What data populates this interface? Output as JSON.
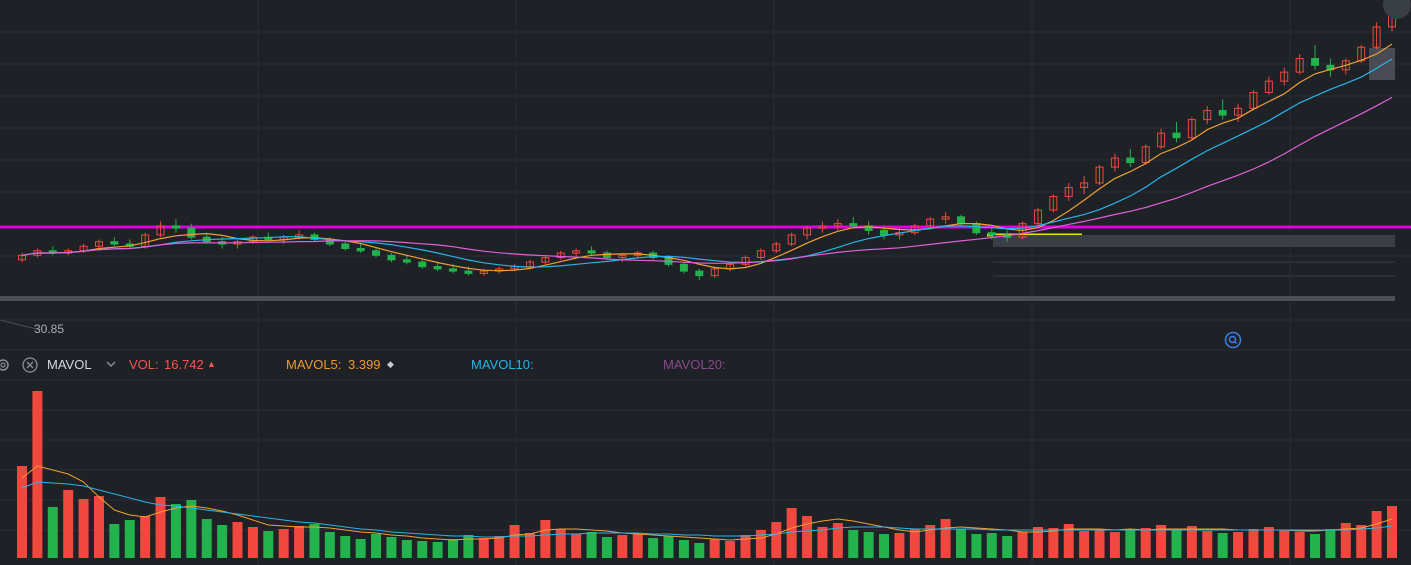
{
  "colors": {
    "background": "#1e2126",
    "grid": "#2a2e35",
    "up": "#f0483e",
    "down": "#22b34c",
    "ma5": "#f0a030",
    "ma10": "#28b4e8",
    "ma20": "#e060d8",
    "resistance": "#e000e0",
    "support": "#f0e010",
    "vol_label": "#f0584e",
    "mavol5_label": "#f09a2a",
    "mavol10_label": "#28b4e8",
    "mavol20_label": "#8a4a8c"
  },
  "icons": {
    "settings": "gear-icon",
    "close": "close-circle-icon",
    "dropdown": "chevron-down-icon",
    "zoom": "zoom-reset-icon"
  },
  "price_panel": {
    "low_price_label": "30.85"
  },
  "indicator_bar": {
    "name": "MAVOL",
    "vol_label": "VOL:",
    "vol_value": "16.742",
    "vol_marker": "▲",
    "mavol5_label": "MAVOL5:",
    "mavol5_value": "3.399",
    "mavol5_marker": "◆",
    "mavol10_label": "MAVOL10:",
    "mavol20_label": "MAVOL20:"
  },
  "chart_data": [
    {
      "type": "candlestick",
      "title": "",
      "overlays": [
        "MA5",
        "MA10",
        "MA20"
      ],
      "horizontal_lines": [
        "resistance (magenta)",
        "support (yellow)"
      ],
      "candles": [
        [
          33.1,
          33.4,
          33.0,
          33.3
        ],
        [
          33.3,
          33.6,
          33.2,
          33.5
        ],
        [
          33.5,
          33.7,
          33.3,
          33.4
        ],
        [
          33.4,
          33.6,
          33.3,
          33.5
        ],
        [
          33.5,
          33.8,
          33.4,
          33.7
        ],
        [
          33.7,
          34.0,
          33.5,
          33.9
        ],
        [
          33.9,
          34.1,
          33.7,
          33.8
        ],
        [
          33.8,
          34.0,
          33.6,
          33.7
        ],
        [
          33.7,
          34.3,
          33.6,
          34.2
        ],
        [
          34.2,
          34.8,
          34.1,
          34.6
        ],
        [
          34.6,
          34.9,
          34.3,
          34.5
        ],
        [
          34.5,
          34.7,
          34.0,
          34.1
        ],
        [
          34.1,
          34.3,
          33.8,
          33.9
        ],
        [
          33.9,
          34.1,
          33.6,
          33.8
        ],
        [
          33.8,
          34.0,
          33.6,
          33.9
        ],
        [
          33.9,
          34.2,
          33.8,
          34.1
        ],
        [
          34.1,
          34.3,
          33.9,
          34.0
        ],
        [
          34.0,
          34.2,
          33.8,
          34.1
        ],
        [
          34.1,
          34.4,
          34.0,
          34.2
        ],
        [
          34.2,
          34.3,
          33.9,
          34.0
        ],
        [
          34.0,
          34.1,
          33.7,
          33.8
        ],
        [
          33.8,
          33.9,
          33.5,
          33.6
        ],
        [
          33.6,
          33.8,
          33.4,
          33.5
        ],
        [
          33.5,
          33.6,
          33.2,
          33.3
        ],
        [
          33.3,
          33.4,
          33.0,
          33.1
        ],
        [
          33.1,
          33.3,
          32.9,
          33.0
        ],
        [
          33.0,
          33.1,
          32.7,
          32.8
        ],
        [
          32.8,
          33.0,
          32.6,
          32.7
        ],
        [
          32.7,
          32.9,
          32.5,
          32.6
        ],
        [
          32.6,
          32.8,
          32.4,
          32.5
        ],
        [
          32.5,
          32.7,
          32.4,
          32.6
        ],
        [
          32.6,
          32.8,
          32.5,
          32.7
        ],
        [
          32.7,
          32.9,
          32.6,
          32.8
        ],
        [
          32.8,
          33.1,
          32.7,
          33.0
        ],
        [
          33.0,
          33.3,
          32.9,
          33.2
        ],
        [
          33.2,
          33.5,
          33.1,
          33.4
        ],
        [
          33.4,
          33.6,
          33.2,
          33.5
        ],
        [
          33.5,
          33.7,
          33.3,
          33.4
        ],
        [
          33.4,
          33.5,
          33.1,
          33.2
        ],
        [
          33.2,
          33.4,
          33.0,
          33.3
        ],
        [
          33.3,
          33.5,
          33.2,
          33.4
        ],
        [
          33.4,
          33.5,
          33.1,
          33.2
        ],
        [
          33.2,
          33.3,
          32.8,
          32.9
        ],
        [
          32.9,
          33.0,
          32.5,
          32.6
        ],
        [
          32.6,
          32.7,
          32.2,
          32.4
        ],
        [
          32.4,
          32.8,
          32.3,
          32.7
        ],
        [
          32.7,
          33.0,
          32.6,
          32.9
        ],
        [
          32.9,
          33.3,
          32.8,
          33.2
        ],
        [
          33.2,
          33.6,
          33.1,
          33.5
        ],
        [
          33.5,
          33.9,
          33.4,
          33.8
        ],
        [
          33.8,
          34.3,
          33.7,
          34.2
        ],
        [
          34.2,
          34.6,
          34.0,
          34.5
        ],
        [
          34.5,
          34.8,
          34.3,
          34.6
        ],
        [
          34.6,
          34.9,
          34.4,
          34.7
        ],
        [
          34.7,
          35.0,
          34.5,
          34.6
        ],
        [
          34.6,
          34.8,
          34.2,
          34.4
        ],
        [
          34.4,
          34.6,
          34.0,
          34.2
        ],
        [
          34.2,
          34.5,
          34.0,
          34.3
        ],
        [
          34.3,
          34.7,
          34.2,
          34.6
        ],
        [
          34.6,
          35.0,
          34.5,
          34.9
        ],
        [
          34.9,
          35.2,
          34.7,
          35.0
        ],
        [
          35.0,
          35.1,
          34.6,
          34.7
        ],
        [
          34.7,
          34.8,
          34.2,
          34.3
        ],
        [
          34.3,
          34.5,
          34.0,
          34.2
        ],
        [
          34.2,
          34.4,
          33.9,
          34.1
        ],
        [
          34.1,
          34.8,
          34.0,
          34.7
        ],
        [
          34.7,
          35.4,
          34.6,
          35.3
        ],
        [
          35.3,
          36.0,
          35.2,
          35.9
        ],
        [
          35.9,
          36.5,
          35.7,
          36.3
        ],
        [
          36.3,
          36.8,
          36.0,
          36.5
        ],
        [
          36.5,
          37.3,
          36.4,
          37.2
        ],
        [
          37.2,
          37.8,
          37.0,
          37.6
        ],
        [
          37.6,
          38.0,
          37.2,
          37.4
        ],
        [
          37.4,
          38.2,
          37.3,
          38.1
        ],
        [
          38.1,
          38.9,
          38.0,
          38.7
        ],
        [
          38.7,
          39.2,
          38.3,
          38.5
        ],
        [
          38.5,
          39.4,
          38.4,
          39.3
        ],
        [
          39.3,
          39.9,
          39.1,
          39.7
        ],
        [
          39.7,
          40.2,
          39.3,
          39.5
        ],
        [
          39.5,
          40.0,
          39.2,
          39.8
        ],
        [
          39.8,
          40.6,
          39.7,
          40.5
        ],
        [
          40.5,
          41.2,
          40.4,
          41.0
        ],
        [
          41.0,
          41.6,
          40.8,
          41.4
        ],
        [
          41.4,
          42.2,
          41.3,
          42.0
        ],
        [
          42.0,
          42.6,
          41.5,
          41.7
        ],
        [
          41.7,
          42.0,
          41.2,
          41.5
        ],
        [
          41.5,
          42.0,
          41.3,
          41.9
        ],
        [
          41.9,
          42.6,
          41.8,
          42.5
        ],
        [
          42.5,
          43.6,
          42.4,
          43.4
        ],
        [
          43.4,
          44.2,
          43.2,
          43.9
        ]
      ]
    },
    {
      "type": "bar",
      "title": "MAVOL",
      "series": [
        {
          "name": "VOL",
          "values": [
            9.2,
            16.7,
            5.1,
            6.8,
            5.9,
            6.2,
            3.4,
            3.8,
            4.2,
            6.1,
            5.4,
            5.8,
            3.9,
            3.3,
            3.6,
            3.1,
            2.7,
            2.9,
            3.2,
            3.4,
            2.6,
            2.2,
            1.9,
            2.4,
            2.1,
            1.8,
            1.7,
            1.6,
            1.9,
            2.3,
            2.0,
            2.2,
            3.3,
            2.5,
            3.8,
            2.9,
            2.4,
            2.6,
            2.1,
            2.3,
            2.4,
            2.0,
            2.2,
            1.8,
            1.5,
            1.9,
            1.7,
            2.3,
            2.8,
            3.6,
            5.0,
            4.2,
            3.1,
            3.5,
            2.8,
            2.6,
            2.4,
            2.5,
            2.9,
            3.3,
            3.9,
            2.9,
            2.4,
            2.5,
            2.2,
            2.6,
            3.1,
            3.0,
            3.4,
            2.7,
            2.9,
            2.6,
            2.8,
            3.0,
            3.3,
            2.8,
            3.2,
            2.7,
            2.5,
            2.6,
            2.9,
            3.1,
            2.8,
            2.6,
            2.4,
            2.9,
            3.5,
            3.3,
            4.7,
            5.2
          ]
        },
        {
          "name": "MAVOL5",
          "values": [
            8.0,
            9.2,
            8.8,
            8.4,
            7.6,
            6.1,
            4.8,
            4.3,
            4.1,
            4.6,
            5.0,
            5.2,
            5.0,
            4.7,
            4.3,
            3.8,
            3.3,
            3.2,
            3.1,
            3.1,
            3.0,
            2.8,
            2.6,
            2.5,
            2.3,
            2.2,
            2.0,
            1.9,
            1.8,
            1.9,
            1.9,
            2.0,
            2.3,
            2.4,
            2.8,
            2.9,
            2.9,
            2.8,
            2.7,
            2.5,
            2.4,
            2.3,
            2.2,
            2.1,
            2.0,
            1.9,
            1.8,
            1.9,
            2.0,
            2.4,
            3.0,
            3.4,
            3.7,
            3.9,
            3.7,
            3.4,
            3.1,
            2.8,
            2.6,
            2.8,
            3.0,
            3.1,
            3.0,
            2.9,
            2.8,
            2.6,
            2.6,
            2.7,
            2.9,
            2.9,
            2.9,
            2.8,
            2.9,
            2.8,
            2.9,
            2.9,
            2.9,
            2.9,
            2.9,
            2.8,
            2.8,
            2.8,
            2.8,
            2.7,
            2.7,
            2.8,
            2.9,
            3.0,
            3.4,
            3.9
          ]
        },
        {
          "name": "MAVOL10",
          "values": [
            7.0,
            7.6,
            7.5,
            7.4,
            7.2,
            6.8,
            6.4,
            6.0,
            5.6,
            5.3,
            5.2,
            5.0,
            4.8,
            4.6,
            4.4,
            4.2,
            4.0,
            3.8,
            3.6,
            3.5,
            3.3,
            3.1,
            2.9,
            2.8,
            2.6,
            2.5,
            2.4,
            2.3,
            2.2,
            2.2,
            2.1,
            2.1,
            2.2,
            2.2,
            2.3,
            2.4,
            2.4,
            2.5,
            2.5,
            2.5,
            2.5,
            2.4,
            2.4,
            2.3,
            2.3,
            2.2,
            2.2,
            2.2,
            2.3,
            2.4,
            2.6,
            2.7,
            2.8,
            3.0,
            3.1,
            3.1,
            3.1,
            3.0,
            2.9,
            2.9,
            2.9,
            2.9,
            2.9,
            2.8,
            2.8,
            2.8,
            2.8,
            2.8,
            2.8,
            2.8,
            2.8,
            2.8,
            2.8,
            2.8,
            2.8,
            2.8,
            2.8,
            2.8,
            2.8,
            2.8,
            2.8,
            2.8,
            2.8,
            2.8,
            2.8,
            2.8,
            2.8,
            2.9,
            3.0,
            3.2
          ]
        }
      ]
    }
  ]
}
